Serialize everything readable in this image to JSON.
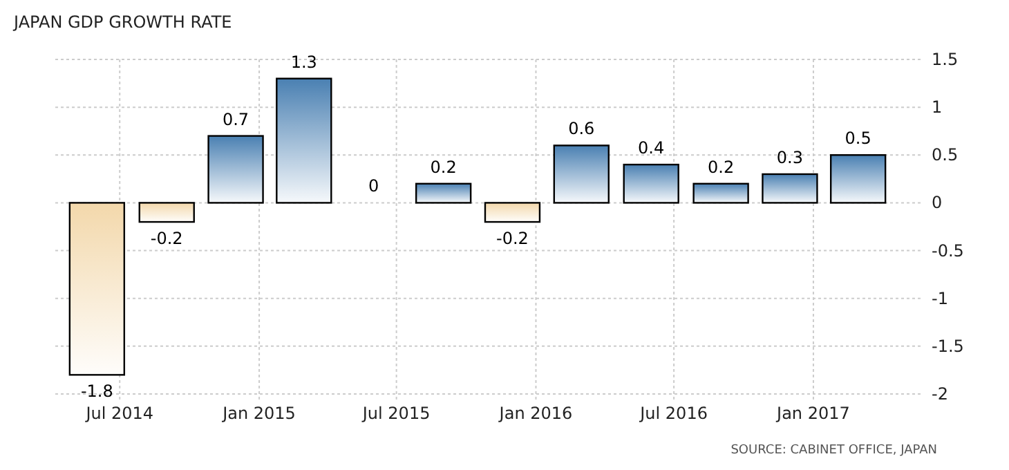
{
  "chart_data": {
    "type": "bar",
    "title": "JAPAN GDP GROWTH RATE",
    "x": [
      "2014-06",
      "2014-09",
      "2014-12",
      "2015-03",
      "2015-06",
      "2015-09",
      "2015-12",
      "2016-03",
      "2016-06",
      "2016-09",
      "2016-12",
      "2017-03"
    ],
    "values": [
      -1.8,
      -0.2,
      0.7,
      1.3,
      0,
      0.2,
      -0.2,
      0.6,
      0.4,
      0.2,
      0.3,
      0.5
    ],
    "colors": [
      "#f3d8ab",
      "#f3d8ab",
      "#4a80b2",
      "#4a80b2",
      "#4a80b2",
      "#4a80b2",
      "#f3d8ab",
      "#4a80b2",
      "#4a80b2",
      "#4a80b2",
      "#4a80b2",
      "#4a80b2"
    ],
    "xlim": [
      "2014-04-07",
      "2017-05-26"
    ],
    "xticks": [
      {
        "value": "2014-07",
        "label": "Jul 2014"
      },
      {
        "value": "2015-01",
        "label": "Jan 2015"
      },
      {
        "value": "2015-07",
        "label": "Jul 2015"
      },
      {
        "value": "2016-01",
        "label": "Jan 2016"
      },
      {
        "value": "2016-07",
        "label": "Jul 2016"
      },
      {
        "value": "2017-01",
        "label": "Jan 2017"
      }
    ],
    "ylim": [
      -2,
      1.5
    ],
    "yticks": [
      -2,
      -1.5,
      -1,
      -0.5,
      0,
      0.5,
      1,
      1.5
    ],
    "grid": true,
    "data_labels": true,
    "annotations": [
      "SOURCE:  CABINET OFFICE, JAPAN"
    ]
  }
}
